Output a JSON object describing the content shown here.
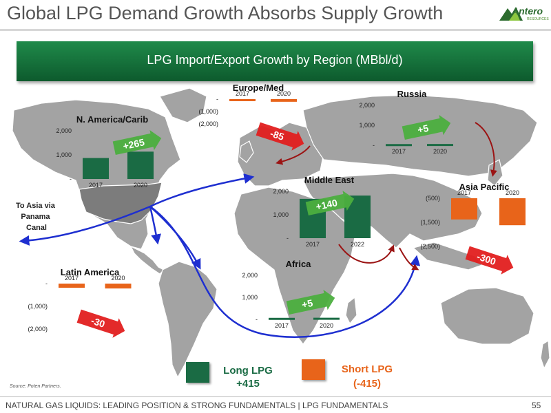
{
  "page": {
    "title": "Global LPG Demand Growth Absorbs Supply Growth",
    "logo_text": "Antero",
    "logo_sub": "RESOURCES",
    "banner": "LPG Import/Export Growth by Region (MBbl/d)",
    "annotation_panama": "To Asia via\nPanama\nCanal",
    "source": "Source: Poten Partners.",
    "footer": "NATURAL GAS LIQUIDS: LEADING POSITION & STRONG FUNDAMENTALS | LPG FUNDAMENTALS",
    "page_number": "55"
  },
  "legend": {
    "long": {
      "label": "Long LPG",
      "value": "+415"
    },
    "short": {
      "label": "Short LPG",
      "value": "(-415)"
    }
  },
  "colors": {
    "long": "#1a6b44",
    "short": "#e8641a",
    "growth_arrow": "#4caf3f",
    "decline_arrow": "#e21f1f",
    "flow_arrow": "#1e2fd0",
    "map_land": "#a3a3a3",
    "map_highlight": "#7c7c7c"
  },
  "chart_data": [
    {
      "type": "bar",
      "title": "N. America/Carib",
      "categories": [
        "2017",
        "2020"
      ],
      "values": [
        870,
        1135
      ],
      "ylim": [
        0,
        2000
      ],
      "yticks": [
        "2,000",
        "1,000",
        "-"
      ],
      "change_label": "+265",
      "trend": "up"
    },
    {
      "type": "bar",
      "title": "Europe/Med",
      "categories": [
        "2017",
        "2020"
      ],
      "values": [
        -130,
        -215
      ],
      "ylim": [
        -2000,
        0
      ],
      "yticks": [
        "-",
        "(1,000)",
        "(2,000)"
      ],
      "change_label": "-85",
      "trend": "down"
    },
    {
      "type": "bar",
      "title": "Russia",
      "categories": [
        "2017",
        "2020"
      ],
      "values": [
        60,
        65
      ],
      "ylim": [
        0,
        2000
      ],
      "yticks": [
        "2,000",
        "1,000",
        "-"
      ],
      "change_label": "+5",
      "trend": "up"
    },
    {
      "type": "bar",
      "title": "Middle East",
      "categories": [
        "2017",
        "2022"
      ],
      "values": [
        1680,
        1820
      ],
      "ylim": [
        0,
        2000
      ],
      "yticks": [
        "2,000",
        "1,000",
        "-"
      ],
      "change_label": "+140",
      "trend": "up"
    },
    {
      "type": "bar",
      "title": "Asia Pacific",
      "categories": [
        "2017",
        "2020"
      ],
      "values": [
        -1100,
        -1400
      ],
      "ylim": [
        -2500,
        0
      ],
      "yticks": [
        "(500)",
        "(1,500)",
        "(2,500)"
      ],
      "change_label": "-300",
      "trend": "down"
    },
    {
      "type": "bar",
      "title": "Latin America",
      "categories": [
        "2017",
        "2020"
      ],
      "values": [
        -185,
        -215
      ],
      "ylim": [
        -2000,
        0
      ],
      "yticks": [
        "-",
        "(1,000)",
        "(2,000)"
      ],
      "change_label": "-30",
      "trend": "down"
    },
    {
      "type": "bar",
      "title": "Africa",
      "categories": [
        "2017",
        "2020"
      ],
      "values": [
        70,
        75
      ],
      "ylim": [
        0,
        2000
      ],
      "yticks": [
        "2,000",
        "1,000",
        "-"
      ],
      "change_label": "+5",
      "trend": "up"
    }
  ]
}
